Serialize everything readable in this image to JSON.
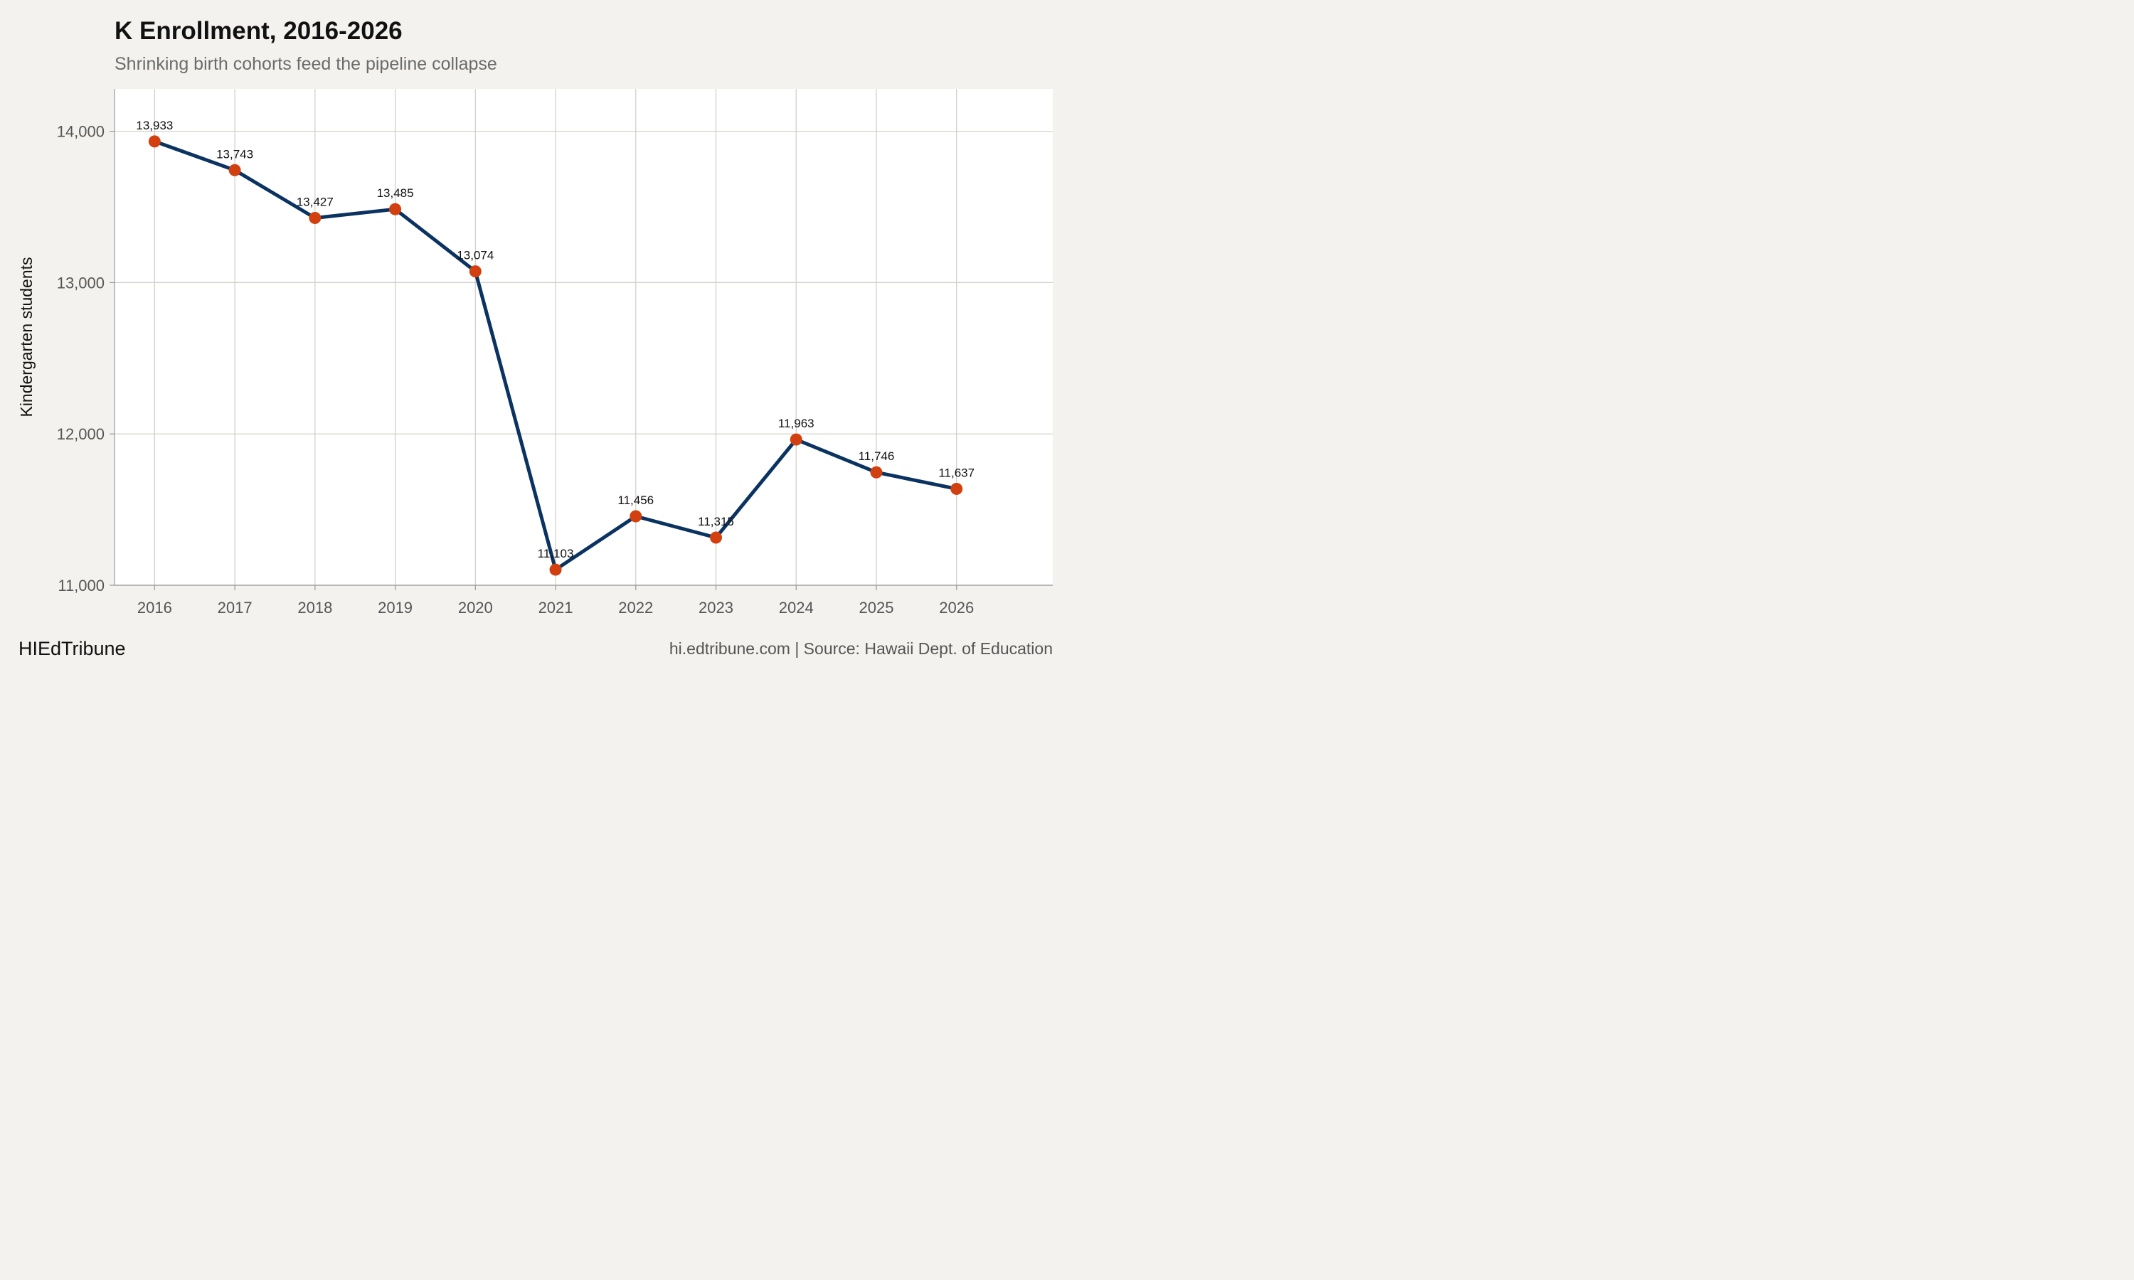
{
  "chart": {
    "title": "K Enrollment, 2016-2026",
    "subtitle": "Shrinking birth cohorts feed the pipeline collapse",
    "brand": "HIEdTribune",
    "caption": "hi.edtribune.com | Source: Hawaii Dept. of Education"
  },
  "chart_data": {
    "type": "line",
    "title": "K Enrollment, 2016-2026",
    "subtitle": "Shrinking birth cohorts feed the pipeline collapse",
    "xlabel": "",
    "ylabel": "Kindergarten students",
    "x": [
      2016,
      2017,
      2018,
      2019,
      2020,
      2021,
      2022,
      2023,
      2024,
      2025,
      2026
    ],
    "x_tick_labels": [
      "2016",
      "2017",
      "2018",
      "2019",
      "2020",
      "2021",
      "2022",
      "2023",
      "2024",
      "2025",
      "2026"
    ],
    "values": [
      13933,
      13743,
      13427,
      13485,
      13074,
      11103,
      11456,
      11315,
      11963,
      11746,
      11637
    ],
    "data_labels": [
      "13,933",
      "13,743",
      "13,427",
      "13,485",
      "13,074",
      "11,103",
      "11,456",
      "11,315",
      "11,963",
      "11,746",
      "11,637"
    ],
    "y_ticks": [
      11000,
      12000,
      13000,
      14000
    ],
    "y_tick_labels": [
      "11,000",
      "12,000",
      "13,000",
      "14,000"
    ],
    "xlim": [
      2015.5,
      2027.2
    ],
    "ylim": [
      11000,
      14280
    ],
    "grid": true,
    "legend": "none",
    "colors": {
      "line": "#0b3361",
      "point": "#d2400f",
      "panel": "#ffffff",
      "background": "#f4f2ee",
      "grid": "#cfcdc6"
    }
  }
}
